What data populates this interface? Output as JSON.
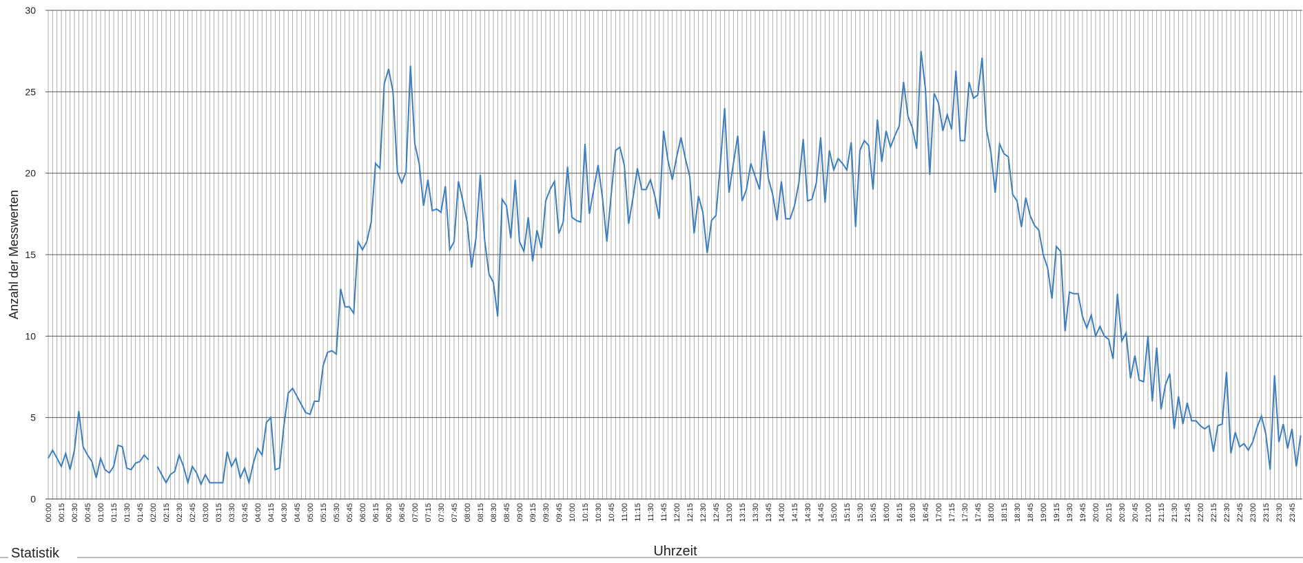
{
  "chart_data": {
    "type": "line",
    "section_label": "Statistik",
    "x_label": "Uhrzeit",
    "y_label": "Anzahl der Messwerten",
    "ylim": [
      0,
      30
    ],
    "yticks": [
      0,
      5,
      10,
      15,
      20,
      25,
      30
    ],
    "grid": true,
    "categories": [
      "00:00",
      null,
      null,
      "00:15",
      null,
      null,
      "00:30",
      null,
      null,
      "00:45",
      null,
      null,
      "01:00",
      null,
      null,
      "01:15",
      null,
      null,
      "01:30",
      null,
      null,
      "01:45",
      null,
      null,
      "02:00",
      null,
      null,
      "02:15",
      null,
      null,
      "02:30",
      null,
      null,
      "02:45",
      null,
      null,
      "03:00",
      null,
      null,
      "03:15",
      null,
      null,
      "03:30",
      null,
      null,
      "03:45",
      null,
      null,
      "04:00",
      null,
      null,
      "04:15",
      null,
      null,
      "04:30",
      null,
      null,
      "04:45",
      null,
      null,
      "05:00",
      null,
      null,
      "05:15",
      null,
      null,
      "05:30",
      null,
      null,
      "05:45",
      null,
      null,
      "06:00",
      null,
      null,
      "06:15",
      null,
      null,
      "06:30",
      null,
      null,
      "06:45",
      null,
      null,
      "07:00",
      null,
      null,
      "07:15",
      null,
      null,
      "07:30",
      null,
      null,
      "07:45",
      null,
      null,
      "08:00",
      null,
      null,
      "08:15",
      null,
      null,
      "08:30",
      null,
      null,
      "08:45",
      null,
      null,
      "09:00",
      null,
      null,
      "09:15",
      null,
      null,
      "09:30",
      null,
      null,
      "09:45",
      null,
      null,
      "10:00",
      null,
      null,
      "10:15",
      null,
      null,
      "10:30",
      null,
      null,
      "10:45",
      null,
      null,
      "11:00",
      null,
      null,
      "11:15",
      null,
      null,
      "11:30",
      null,
      null,
      "11:45",
      null,
      null,
      "12:00",
      null,
      null,
      "12:15",
      null,
      null,
      "12:30",
      null,
      null,
      "12:45",
      null,
      null,
      "13:00",
      null,
      null,
      "13:15",
      null,
      null,
      "13:30",
      null,
      null,
      "13:45",
      null,
      null,
      "14:00",
      null,
      null,
      "14:15",
      null,
      null,
      "14:30",
      null,
      null,
      "14:45",
      null,
      null,
      "15:00",
      null,
      null,
      "15:15",
      null,
      null,
      "15:30",
      null,
      null,
      "15:45",
      null,
      null,
      "16:00",
      null,
      null,
      "16:15",
      null,
      null,
      "16:30",
      null,
      null,
      "16:45",
      null,
      null,
      "17:00",
      null,
      null,
      "17:15",
      null,
      null,
      "17:30",
      null,
      null,
      "17:45",
      null,
      null,
      "18:00",
      null,
      null,
      "18:15",
      null,
      null,
      "18:30",
      null,
      null,
      "18:45",
      null,
      null,
      "19:00",
      null,
      null,
      "19:15",
      null,
      null,
      "19:30",
      null,
      null,
      "19:45",
      null,
      null,
      "20:00",
      null,
      null,
      "20:15",
      null,
      null,
      "20:30",
      null,
      null,
      "20:45",
      null,
      null,
      "21:00",
      null,
      null,
      "21:15",
      null,
      null,
      "21:30",
      null,
      null,
      "21:45",
      null,
      null,
      "22:00",
      null,
      null,
      "22:15",
      null,
      null,
      "22:30",
      null,
      null,
      "22:45",
      null,
      null,
      "23:00",
      null,
      null,
      "23:15",
      null,
      null,
      "23:30",
      null,
      null,
      "23:45",
      null,
      null
    ],
    "series": [
      {
        "name": "Anzahl der Messwerten",
        "color": "#3a7ebf",
        "values": [
          2.5,
          3,
          2.5,
          2,
          2.8,
          1.8,
          3,
          5.4,
          3.2,
          2.7,
          2.3,
          1.3,
          2.5,
          1.8,
          1.6,
          2,
          3.3,
          3.2,
          1.9,
          1.8,
          2.2,
          2.3,
          2.7,
          2.4,
          null,
          2,
          1.5,
          1,
          1.5,
          1.7,
          2.7,
          2,
          1,
          2,
          1.6,
          0.9,
          1.5,
          1,
          1,
          1,
          1,
          2.9,
          2,
          2.5,
          1.3,
          1.9,
          1,
          2.2,
          3.1,
          2.7,
          4.7,
          5,
          1.8,
          1.9,
          4.5,
          6.5,
          6.8,
          6.3,
          5.8,
          5.3,
          5.2,
          6,
          6,
          8.2,
          9,
          9.1,
          8.9,
          12.9,
          11.8,
          11.8,
          11.4,
          15.8,
          15.3,
          15.8,
          17,
          20.6,
          20.3,
          25.5,
          26.4,
          25,
          20.1,
          19.4,
          20.1,
          26.6,
          21.8,
          20.6,
          18,
          19.6,
          17.7,
          17.8,
          17.6,
          19.2,
          15.3,
          15.8,
          19.5,
          18.3,
          17,
          14.2,
          16,
          19.9,
          15.9,
          13.8,
          13.3,
          11.2,
          18.4,
          18,
          16,
          19.6,
          15.8,
          15.2,
          17.3,
          14.6,
          16.5,
          15.4,
          18.3,
          19,
          19.5,
          16.3,
          17,
          20.4,
          17.3,
          17.1,
          17,
          21.8,
          17.5,
          19,
          20.5,
          18.5,
          15.8,
          18.7,
          21.4,
          21.6,
          20.5,
          16.9,
          18.5,
          20.3,
          19,
          19,
          19.6,
          18.6,
          17.2,
          22.6,
          20.8,
          19.6,
          21,
          22.2,
          20.9,
          19.8,
          16.3,
          18.6,
          17.6,
          15.1,
          17.1,
          17.4,
          20.5,
          24,
          18.8,
          20.6,
          22.3,
          18.3,
          19,
          20.6,
          19.8,
          19,
          22.6,
          19.7,
          18.7,
          17.1,
          19.5,
          17.2,
          17.2,
          18,
          19.4,
          22.1,
          18.3,
          18.4,
          19.4,
          22.2,
          18.2,
          21.4,
          20.2,
          20.9,
          20.6,
          20.2,
          21.9,
          16.7,
          21.4,
          22,
          21.7,
          19,
          23.3,
          20.7,
          22.6,
          21.6,
          22.3,
          22.9,
          25.6,
          23.5,
          22.8,
          21.5,
          27.5,
          25.2,
          19.9,
          24.9,
          24.3,
          22.6,
          23.6,
          22.7,
          26.3,
          22,
          22,
          25.6,
          24.6,
          24.8,
          27.1,
          22.7,
          21.3,
          18.8,
          21.8,
          21.2,
          21,
          18.7,
          18.3,
          16.7,
          18.5,
          17.4,
          16.8,
          16.5,
          15,
          14.2,
          12.3,
          15.5,
          15.2,
          10.3,
          12.7,
          12.6,
          12.6,
          11.2,
          10.5,
          11.3,
          10,
          10.6,
          10,
          9.8,
          8.6,
          12.6,
          9.7,
          10.2,
          7.4,
          8.8,
          7.3,
          7.2,
          10,
          6,
          9.3,
          5.5,
          7,
          7.7,
          4.3,
          6.3,
          4.6,
          5.9,
          4.8,
          4.8,
          4.5,
          4.3,
          4.5,
          2.9,
          4.5,
          4.6,
          7.8,
          2.8,
          4.1,
          3.2,
          3.4,
          3,
          3.5,
          4.4,
          5.1,
          4,
          1.8,
          7.6,
          3.5,
          4.6,
          3.1,
          4.3,
          2,
          3.9
        ]
      }
    ]
  }
}
